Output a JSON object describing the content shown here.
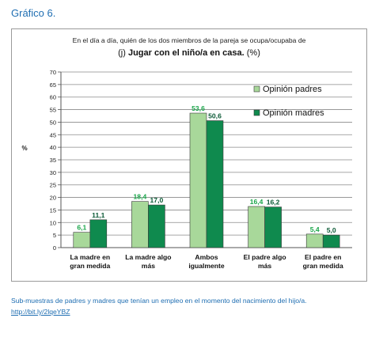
{
  "header": {
    "title": "Gráfico 6."
  },
  "chart_data": {
    "type": "bar",
    "title_line1": "En el día a día, quién de los dos miembros de la pareja se ocupa/ocupaba de",
    "title_prefix": "(j) ",
    "title_bold": "Jugar con el niño/a en casa.",
    "title_suffix": " (%)",
    "ylabel": "%",
    "ylim": [
      0,
      70
    ],
    "yticks": [
      0,
      5,
      10,
      15,
      20,
      25,
      30,
      35,
      40,
      45,
      50,
      55,
      60,
      65,
      70
    ],
    "grid": true,
    "legend_position": "top-right",
    "categories": [
      [
        "La madre en",
        "gran medida"
      ],
      [
        "La madre algo",
        "más"
      ],
      [
        "Ambos",
        "igualmente"
      ],
      [
        "El padre algo",
        "más"
      ],
      [
        "El padre en",
        "gran medida"
      ]
    ],
    "series": [
      {
        "name": "Opinión padres",
        "values": [
          6.1,
          18.4,
          53.6,
          16.4,
          5.4
        ],
        "labels": [
          "6,1",
          "18,4",
          "53,6",
          "16,4",
          "5,4"
        ],
        "color": "#a8d89a",
        "label_color": "#1aa64a"
      },
      {
        "name": "Opinión madres",
        "values": [
          11.1,
          17.0,
          50.6,
          16.2,
          5.0
        ],
        "labels": [
          "11,1",
          "17,0",
          "50,6",
          "16,2",
          "5,0"
        ],
        "color": "#0f8a4e",
        "label_color": "#0b5a36"
      }
    ]
  },
  "footer": {
    "note": "Sub-muestras de padres y madres que tenían un empleo en el momento del nacimiento del hijo/a.",
    "link": "http://bit.ly/2lqeYBZ"
  }
}
